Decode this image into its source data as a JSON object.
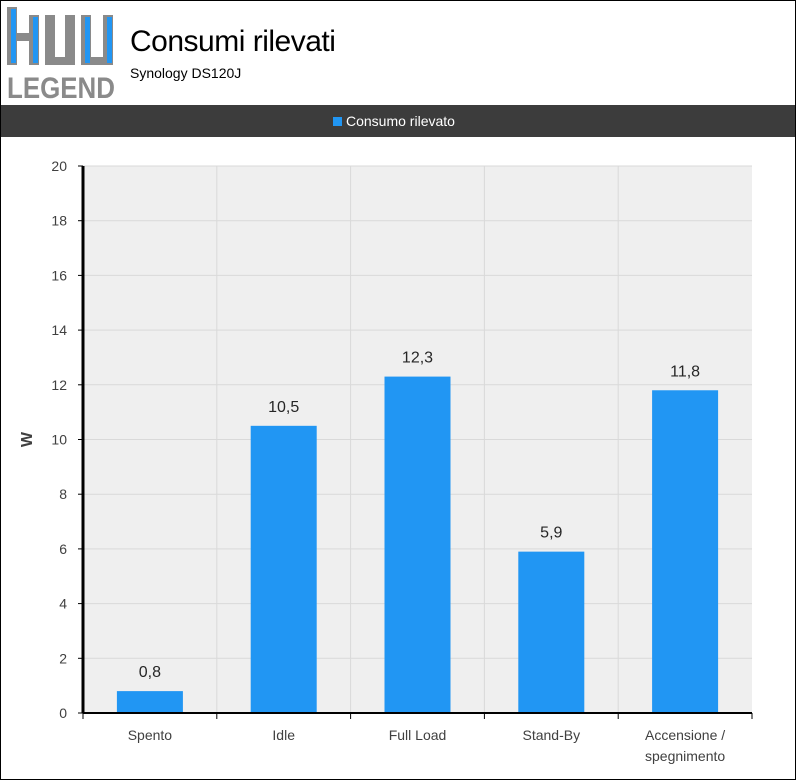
{
  "header": {
    "logo_text": "LEGEND",
    "title": "Consumi rilevati",
    "subtitle": "Synology DS120J"
  },
  "colors": {
    "bar": "#2196f3",
    "legend_background": "#3c3c3c",
    "plot_background": "#efefef",
    "grid": "#d9d9d9"
  },
  "chart_data": {
    "type": "bar",
    "title": "Consumi rilevati",
    "subtitle": "Synology DS120J",
    "categories": [
      "Spento",
      "Idle",
      "Full Load",
      "Stand-By",
      "Accensione / spegnimento"
    ],
    "series": [
      {
        "name": "Consumo rilevato",
        "values": [
          0.8,
          10.5,
          12.3,
          5.9,
          11.8
        ]
      }
    ],
    "data_labels": [
      "0,8",
      "10,5",
      "12,3",
      "5,9",
      "11,8"
    ],
    "ylabel": "W",
    "xlabel": "",
    "ylim": [
      0,
      20
    ],
    "yticks": [
      0,
      2,
      4,
      6,
      8,
      10,
      12,
      14,
      16,
      18,
      20
    ],
    "grid": true,
    "legend_position": "top-center"
  }
}
